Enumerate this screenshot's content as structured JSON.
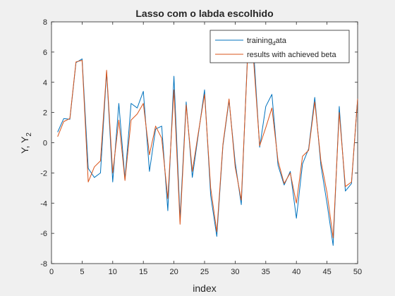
{
  "chart_data": {
    "type": "line",
    "title": "Lasso com o labda escolhido",
    "xlabel": "index",
    "ylabel_parts": [
      "Y, Y",
      "2"
    ],
    "xlim": [
      0,
      50
    ],
    "ylim": [
      -8,
      8
    ],
    "xticks": [
      0,
      5,
      10,
      15,
      20,
      25,
      30,
      35,
      40,
      45,
      50
    ],
    "yticks": [
      -8,
      -6,
      -4,
      -2,
      0,
      2,
      4,
      6,
      8
    ],
    "grid": false,
    "legend_position": "top-right",
    "legend": [
      {
        "label_parts": [
          "training",
          "d",
          "ata"
        ],
        "color": "#0072BD"
      },
      {
        "label_parts": [
          "results with achieved beta"
        ],
        "color": "#D95319"
      }
    ],
    "x": [
      1,
      2,
      3,
      4,
      5,
      6,
      7,
      8,
      9,
      10,
      11,
      12,
      13,
      14,
      15,
      16,
      17,
      18,
      19,
      20,
      21,
      22,
      23,
      24,
      25,
      26,
      27,
      28,
      29,
      30,
      31,
      32,
      33,
      34,
      35,
      36,
      37,
      38,
      39,
      40,
      41,
      42,
      43,
      44,
      45,
      46,
      47,
      48,
      49,
      50
    ],
    "series": [
      {
        "name": "training_data",
        "color": "#0072BD",
        "values": [
          0.7,
          1.6,
          1.55,
          5.3,
          5.55,
          -1.7,
          -2.3,
          -2.0,
          4.7,
          -2.6,
          2.6,
          -2.4,
          2.6,
          2.3,
          3.4,
          -1.9,
          0.9,
          1.1,
          -4.5,
          4.4,
          -5.0,
          2.7,
          -2.3,
          0.6,
          3.5,
          -3.5,
          -6.2,
          -0.2,
          2.8,
          -1.3,
          -4.1,
          5.6,
          6.2,
          -0.3,
          2.4,
          3.2,
          -1.5,
          -2.8,
          -1.9,
          -5.0,
          -1.4,
          -0.4,
          3.0,
          -1.5,
          -4.0,
          -6.8,
          2.4,
          -3.2,
          -2.7,
          2.9
        ]
      },
      {
        "name": "results with achieved beta",
        "color": "#D95319",
        "values": [
          0.4,
          1.4,
          1.6,
          5.35,
          5.45,
          -2.6,
          -1.6,
          -1.2,
          4.8,
          -2.0,
          1.5,
          -2.5,
          1.5,
          1.9,
          2.6,
          -0.8,
          1.1,
          0.3,
          -3.7,
          3.5,
          -5.4,
          2.5,
          -1.9,
          0.7,
          3.2,
          -3.0,
          -5.9,
          -0.1,
          2.9,
          -1.6,
          -3.8,
          5.4,
          5.5,
          -0.2,
          1.0,
          2.3,
          -1.2,
          -2.7,
          -2.0,
          -4.0,
          -0.9,
          -0.5,
          2.7,
          -1.2,
          -3.3,
          -6.3,
          2.0,
          -2.9,
          -2.6,
          2.9
        ]
      }
    ]
  }
}
